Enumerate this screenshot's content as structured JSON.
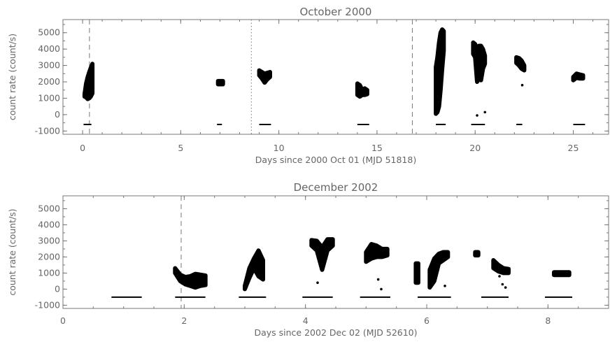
{
  "chart_data": [
    {
      "type": "scatter",
      "title": "October 2000",
      "xlabel": "Days since 2000 Oct 01 (MJD 51818)",
      "ylabel": "count rate (count/s)",
      "xlim": [
        -1,
        26.8
      ],
      "ylim": [
        -1200,
        5800
      ],
      "xticks": [
        0,
        5,
        10,
        15,
        20,
        25
      ],
      "xtick_labels": [
        "0",
        "5",
        "10",
        "15",
        "20",
        "25"
      ],
      "yticks": [
        -1000,
        0,
        1000,
        2000,
        3000,
        4000,
        5000
      ],
      "ytick_labels": [
        "-1000",
        "0",
        "1000",
        "2000",
        "3000",
        "4000",
        "5000"
      ],
      "grid": false,
      "vlines": [
        {
          "x": 0.35,
          "style": "dashed"
        },
        {
          "x": 8.6,
          "style": "dotted"
        },
        {
          "x": 16.8,
          "style": "dashed"
        }
      ],
      "clusters": [
        {
          "x_range": [
            0.1,
            0.5
          ],
          "y_min": [
            1100,
            1050,
            950,
            1000,
            1100,
            1300
          ],
          "y_max": [
            1250,
            1900,
            2300,
            2600,
            2850,
            3100
          ]
        },
        {
          "x_range": [
            6.9,
            7.15
          ],
          "y_min": [
            1850,
            1850,
            1850
          ],
          "y_max": [
            2050,
            2050,
            2050
          ]
        },
        {
          "x_range": [
            9.0,
            9.55
          ],
          "y_min": [
            2400,
            2200,
            1950,
            2150,
            2300
          ],
          "y_max": [
            2700,
            2600,
            2500,
            2550,
            2600
          ]
        },
        {
          "x_range": [
            14.0,
            14.5
          ],
          "y_min": [
            1200,
            1100,
            1200,
            1200,
            1250
          ],
          "y_max": [
            1900,
            1800,
            1500,
            1600,
            1500
          ]
        },
        {
          "x_range": [
            18.0,
            18.4
          ],
          "y_min": [
            50,
            150,
            500,
            1500,
            2800,
            3900
          ],
          "y_max": [
            2900,
            3500,
            4400,
            5000,
            5200,
            5100
          ]
        },
        {
          "x_range": [
            19.9,
            20.5
          ],
          "y_min": [
            3700,
            3500,
            2000,
            2200,
            2100,
            2800,
            3100
          ],
          "y_max": [
            4400,
            4300,
            4000,
            4200,
            4200,
            4000,
            3600
          ]
        },
        {
          "x_range": [
            22.1,
            22.5
          ],
          "y_min": [
            3150,
            3000,
            2800,
            2700
          ],
          "y_max": [
            3500,
            3450,
            3300,
            3000
          ]
        },
        {
          "x_range": [
            25.0,
            25.5
          ],
          "y_min": [
            2100,
            2250,
            2200,
            2200
          ],
          "y_max": [
            2300,
            2500,
            2450,
            2400
          ]
        }
      ],
      "isolated_points": [
        {
          "x": 20.1,
          "y": -50
        },
        {
          "x": 20.5,
          "y": 150
        },
        {
          "x": 22.4,
          "y": 1800
        }
      ],
      "segments": [
        {
          "x0": 0.05,
          "x1": 0.45,
          "y": -600
        },
        {
          "x0": 6.85,
          "x1": 7.1,
          "y": -600
        },
        {
          "x0": 9.0,
          "x1": 9.6,
          "y": -600
        },
        {
          "x0": 14.0,
          "x1": 14.6,
          "y": -600
        },
        {
          "x0": 18.0,
          "x1": 18.5,
          "y": -600
        },
        {
          "x0": 19.8,
          "x1": 20.5,
          "y": -600
        },
        {
          "x0": 22.1,
          "x1": 22.4,
          "y": -600
        },
        {
          "x0": 25.0,
          "x1": 25.6,
          "y": -600
        }
      ]
    },
    {
      "type": "scatter",
      "title": "December 2002",
      "xlabel": "Days since 2002 Dec 02 (MJD 52610)",
      "ylabel": "count rate (count/s)",
      "xlim": [
        0,
        9
      ],
      "ylim": [
        -1200,
        5800
      ],
      "xticks": [
        0,
        2,
        4,
        6,
        8
      ],
      "xtick_labels": [
        "0",
        "2",
        "4",
        "6",
        "8"
      ],
      "yticks": [
        -1000,
        0,
        1000,
        2000,
        3000,
        4000,
        5000
      ],
      "ytick_labels": [
        "-1000",
        "0",
        "1000",
        "2000",
        "3000",
        "4000",
        "5000"
      ],
      "grid": false,
      "vlines": [
        {
          "x": 1.95,
          "style": "dashed"
        }
      ],
      "clusters": [
        {
          "x_range": [
            1.85,
            2.35
          ],
          "y_min": [
            1000,
            500,
            300,
            200,
            100,
            200,
            250
          ],
          "y_max": [
            1300,
            900,
            750,
            800,
            950,
            900,
            850
          ]
        },
        {
          "x_range": [
            3.0,
            3.3
          ],
          "y_min": [
            0,
            700,
            1300,
            800,
            600
          ],
          "y_max": [
            200,
            1300,
            1900,
            2400,
            1800
          ]
        },
        {
          "x_range": [
            4.1,
            4.45
          ],
          "y_min": [
            2700,
            2400,
            1200,
            2400,
            2700
          ],
          "y_max": [
            3050,
            3000,
            2600,
            3100,
            3100
          ]
        },
        {
          "x_range": [
            5.0,
            5.35
          ],
          "y_min": [
            1700,
            1900,
            2000,
            2000,
            2100
          ],
          "y_max": [
            2300,
            2800,
            2700,
            2500,
            2500
          ]
        },
        {
          "x_range": [
            5.82,
            5.86
          ],
          "y_min": [
            400,
            400
          ],
          "y_max": [
            1600,
            1600
          ]
        },
        {
          "x_range": [
            6.05,
            6.35
          ],
          "y_min": [
            100,
            500,
            1600,
            1800,
            2000
          ],
          "y_max": [
            1200,
            1900,
            2200,
            2300,
            2300
          ]
        },
        {
          "x_range": [
            6.8,
            6.85
          ],
          "y_min": [
            2100,
            2100
          ],
          "y_max": [
            2300,
            2300
          ]
        },
        {
          "x_range": [
            7.1,
            7.35
          ],
          "y_min": [
            1300,
            1100,
            1000,
            1000
          ],
          "y_max": [
            1800,
            1500,
            1300,
            1250
          ]
        },
        {
          "x_range": [
            8.1,
            8.35
          ],
          "y_min": [
            880,
            880,
            880
          ],
          "y_max": [
            1050,
            1050,
            1050
          ]
        }
      ],
      "isolated_points": [
        {
          "x": 4.2,
          "y": 400
        },
        {
          "x": 5.2,
          "y": 600
        },
        {
          "x": 5.25,
          "y": 0
        },
        {
          "x": 6.3,
          "y": 200
        },
        {
          "x": 7.2,
          "y": 800
        },
        {
          "x": 7.25,
          "y": 300
        },
        {
          "x": 7.3,
          "y": 100
        }
      ],
      "segments": [
        {
          "x0": 0.8,
          "x1": 1.3,
          "y": -500
        },
        {
          "x0": 1.85,
          "x1": 2.35,
          "y": -500
        },
        {
          "x0": 2.9,
          "x1": 3.35,
          "y": -500
        },
        {
          "x0": 3.95,
          "x1": 4.45,
          "y": -500
        },
        {
          "x0": 4.9,
          "x1": 5.4,
          "y": -500
        },
        {
          "x0": 5.85,
          "x1": 6.4,
          "y": -500
        },
        {
          "x0": 6.9,
          "x1": 7.35,
          "y": -500
        },
        {
          "x0": 7.95,
          "x1": 8.4,
          "y": -500
        }
      ]
    }
  ]
}
